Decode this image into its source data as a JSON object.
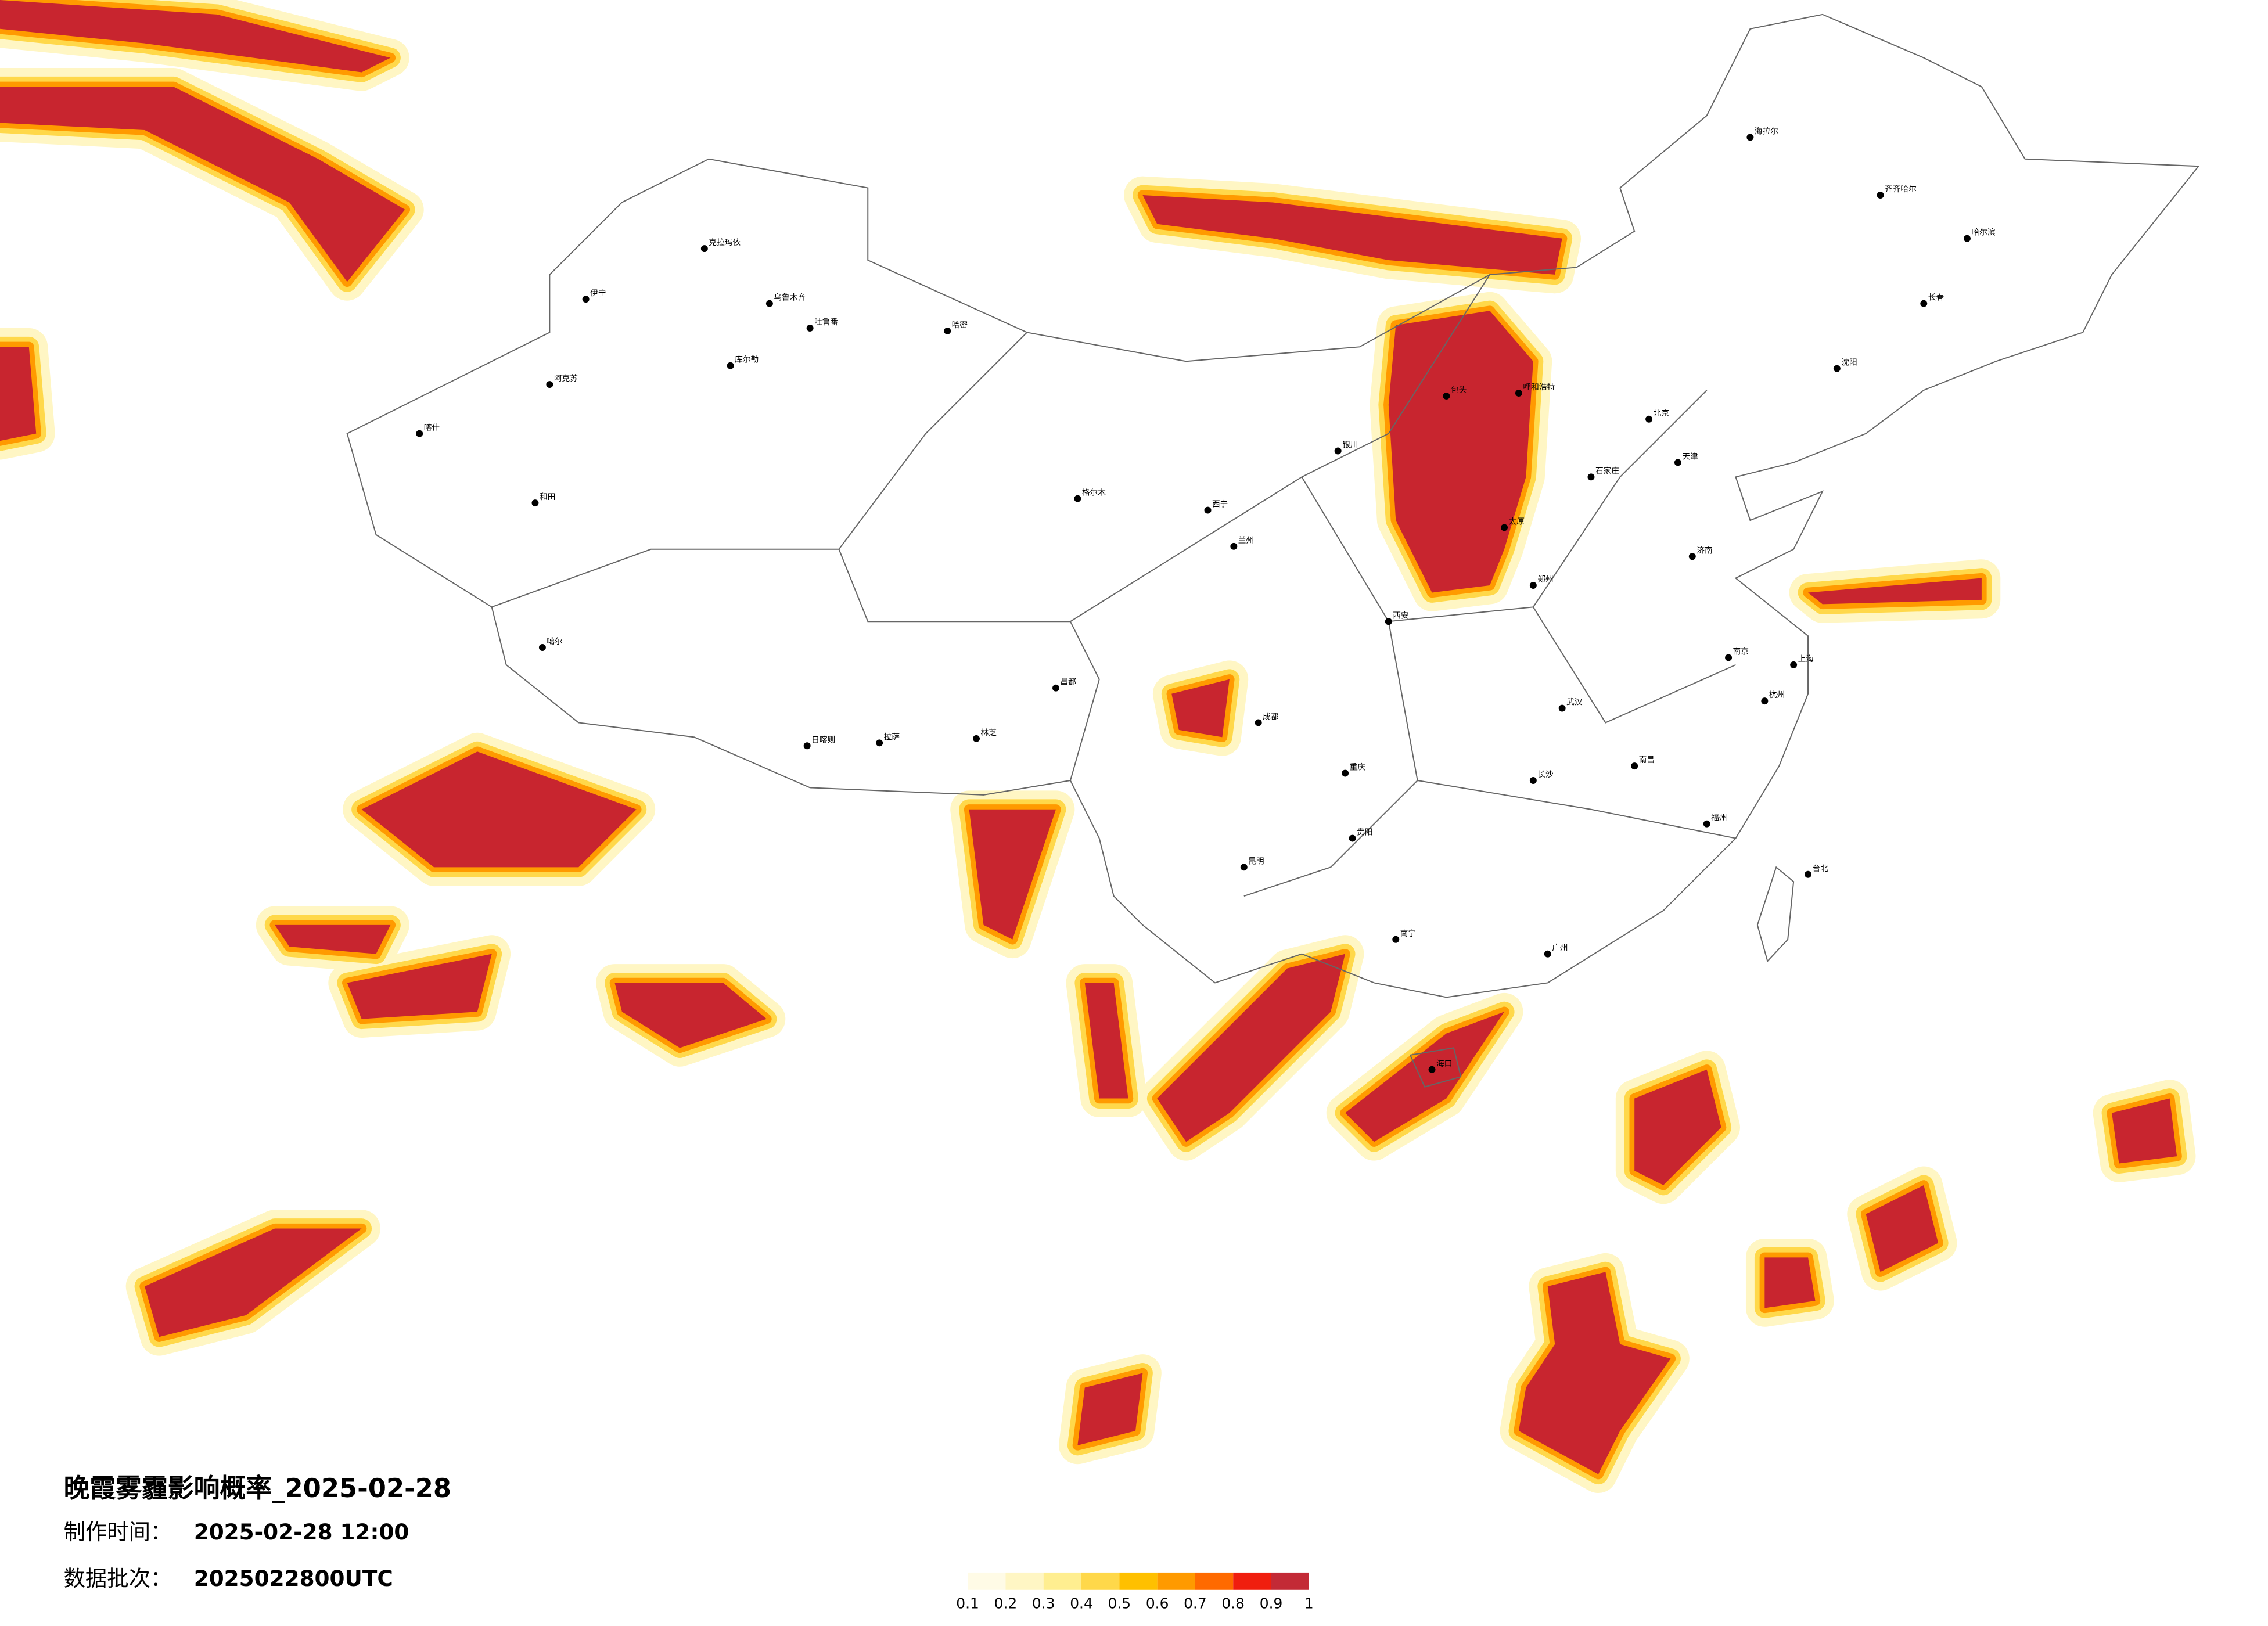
{
  "title": "晚霞雾霾影响概率_2025-02-28",
  "info": [
    {
      "label": "制作时间：",
      "value": "2025-02-28 12:00"
    },
    {
      "label": "数据批次：",
      "value": "2025022800UTC"
    }
  ],
  "legend": {
    "colors": [
      "#fffbe6",
      "#fff6c4",
      "#ffee90",
      "#ffd84a",
      "#ffc000",
      "#ff9a00",
      "#ff6a00",
      "#f01e0e",
      "#c32a36"
    ],
    "ticks": [
      0.1,
      0.2,
      0.3,
      0.4,
      0.5,
      0.6,
      0.7,
      0.8,
      0.9,
      1
    ]
  },
  "cities": [
    "克拉玛依",
    "伊宁",
    "乌鲁木齐",
    "吐鲁番",
    "哈密",
    "库尔勒",
    "阿克苏",
    "喀什",
    "和田",
    "噶尔",
    "日喀则",
    "拉萨",
    "林芝",
    "昌都",
    "格尔木",
    "西宁",
    "兰州",
    "银川",
    "呼和浩特",
    "包头",
    "北京",
    "天津",
    "石家庄",
    "太原",
    "西安",
    "郑州",
    "武汉",
    "成都",
    "重庆",
    "贵阳",
    "昆明",
    "南宁",
    "广州",
    "福州",
    "南昌",
    "长沙",
    "上海",
    "南京",
    "杭州",
    "济南",
    "沈阳",
    "长春",
    "哈尔滨",
    "海拉尔",
    "齐齐哈尔",
    "台北",
    "海口"
  ]
}
